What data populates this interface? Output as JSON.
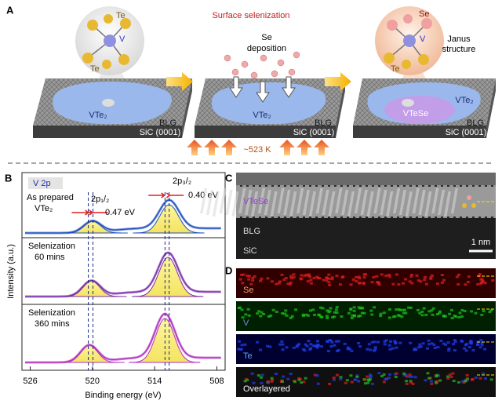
{
  "panel_a": {
    "label": "A",
    "title": "Surface selenization",
    "scene_1": {
      "bubble_atoms": [
        "Te",
        "V",
        "Te"
      ],
      "film": "VTe₂",
      "layer": "BLG",
      "substrate": "SiC (0001)"
    },
    "scene_2": {
      "deposition": [
        "Se",
        "deposition"
      ],
      "film": "VTe₂",
      "layer": "BLG",
      "substrate": "SiC (0001)",
      "temperature": "~523 K"
    },
    "scene_3": {
      "bubble_atoms": [
        "Se",
        "V",
        "Te"
      ],
      "structure": [
        "Janus",
        "structure"
      ],
      "film": "VTe₂",
      "janus_film": "VTeSe",
      "layer": "BLG",
      "substrate": "SiC (0001)"
    }
  },
  "panel_b": {
    "label": "B",
    "tag": "V 2p",
    "ylabel": "Intensity (a.u.)",
    "xlabel": "Binding energy (eV)",
    "xlim": [
      526.8,
      507.2
    ],
    "xticks": [
      526,
      520,
      514,
      508
    ],
    "peak_1": "2p₁/₂",
    "shift_1": "0.47 eV",
    "peak_2": "2p₃/₂",
    "shift_2": "0.40 eV",
    "spectra": [
      [
        "As prepared",
        "VTe₂"
      ],
      [
        "Selenization",
        "60 mins"
      ],
      [
        "Selenization",
        "360 mins"
      ]
    ]
  },
  "panel_c": {
    "label": "C",
    "film": "VTeSe",
    "layer": "BLG",
    "substrate": "SiC",
    "scale": "1 nm"
  },
  "panel_d": {
    "label": "D",
    "maps": [
      "Se",
      "V",
      "Te",
      "Overlayered"
    ]
  }
}
